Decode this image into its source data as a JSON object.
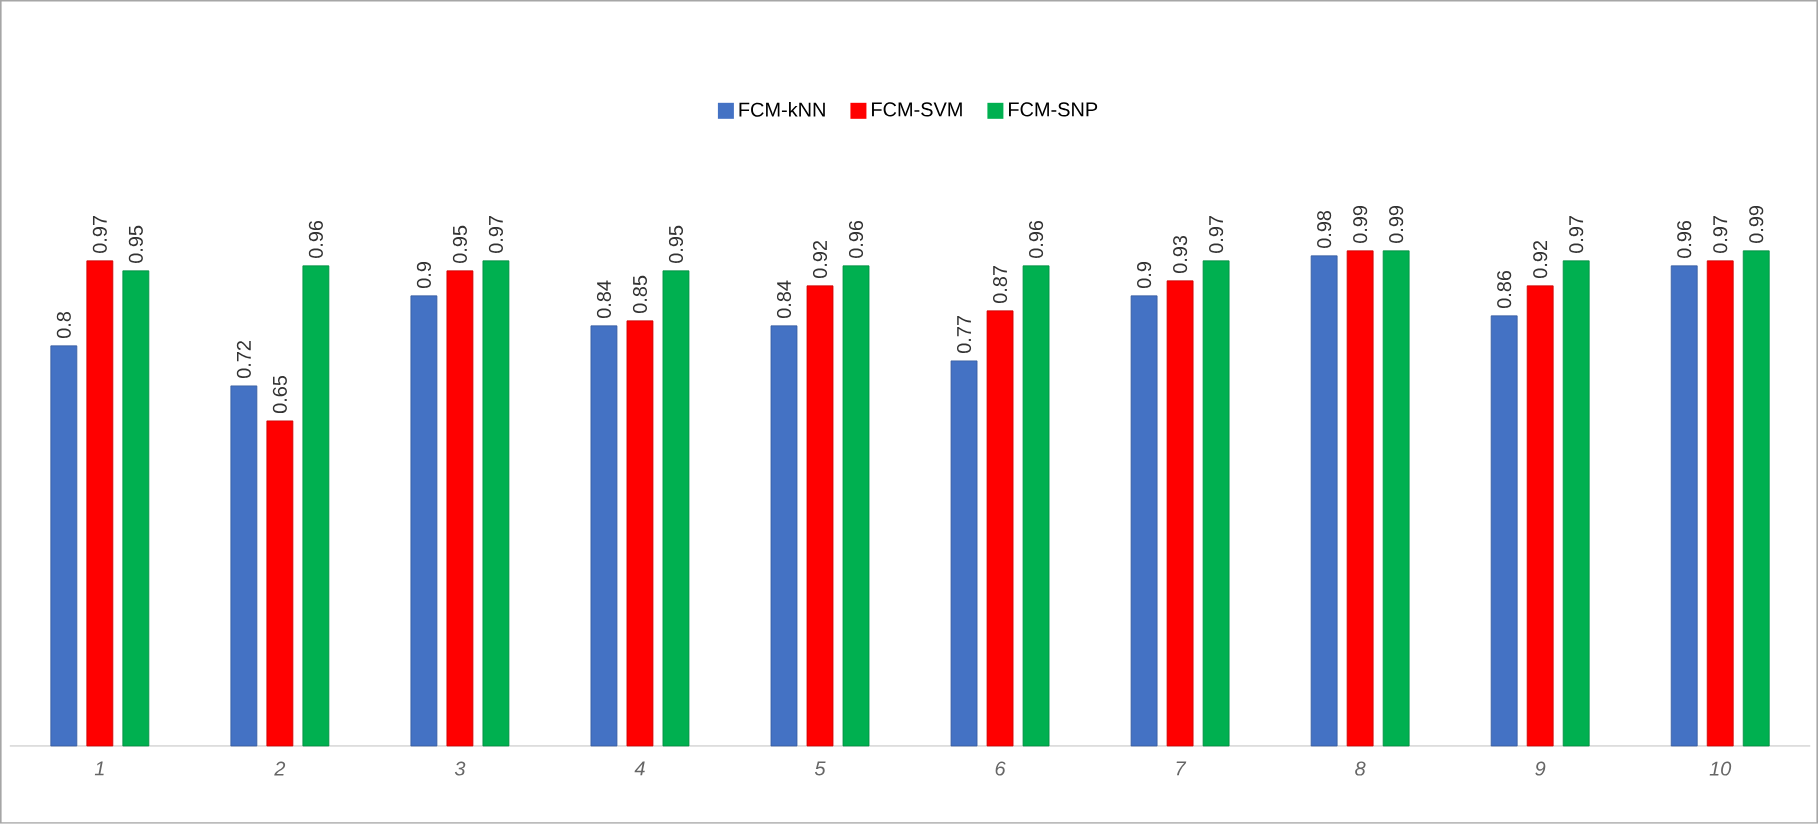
{
  "chart_data": {
    "type": "bar",
    "categories": [
      "1",
      "2",
      "3",
      "4",
      "5",
      "6",
      "7",
      "8",
      "9",
      "10"
    ],
    "series": [
      {
        "name": "FCM-kNN",
        "color": "#4472c4",
        "values": [
          0.8,
          0.72,
          0.9,
          0.84,
          0.84,
          0.77,
          0.9,
          0.98,
          0.86,
          0.96
        ]
      },
      {
        "name": "FCM-SVM",
        "color": "#ff0000",
        "values": [
          0.97,
          0.65,
          0.95,
          0.85,
          0.92,
          0.87,
          0.93,
          0.99,
          0.92,
          0.97
        ]
      },
      {
        "name": "FCM-SNP",
        "color": "#00b050",
        "values": [
          0.95,
          0.96,
          0.97,
          0.95,
          0.96,
          0.96,
          0.97,
          0.99,
          0.97,
          0.99
        ]
      }
    ],
    "ylim": [
      0,
      1
    ],
    "data_labels": true,
    "legend": "top",
    "tick_labels": "x"
  }
}
